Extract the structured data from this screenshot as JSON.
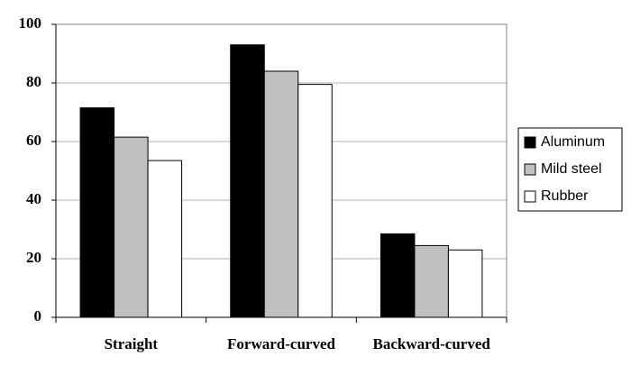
{
  "chart_data": {
    "type": "bar",
    "categories": [
      "Straight",
      "Forward-curved",
      "Backward-curved"
    ],
    "series": [
      {
        "name": "Aluminum",
        "color": "#000000",
        "values": [
          71.5,
          93,
          28.5
        ]
      },
      {
        "name": "Mild steel",
        "color": "#c0c0c0",
        "values": [
          61.5,
          84,
          24.5
        ]
      },
      {
        "name": "Rubber",
        "color": "#ffffff",
        "values": [
          53.5,
          79.5,
          23
        ]
      }
    ],
    "ylim": [
      0,
      100
    ],
    "yticks": [
      0,
      20,
      40,
      60,
      80,
      100
    ],
    "grid": true,
    "legend": "right"
  }
}
